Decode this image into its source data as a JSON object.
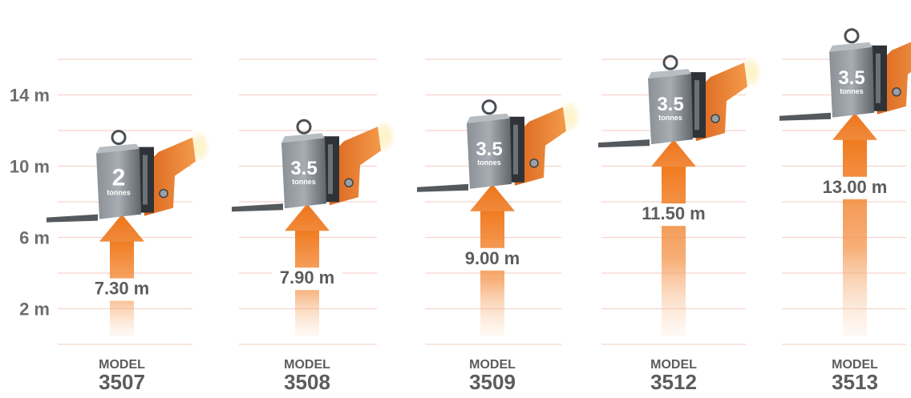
{
  "chart_data": {
    "type": "bar",
    "y_ticks": [
      "2 m",
      "6 m",
      "10 m",
      "14 m"
    ],
    "y_tick_values": [
      2,
      6,
      10,
      14
    ],
    "ylim": [
      0,
      16
    ],
    "grid": true,
    "categories": [
      {
        "model_word": "MODEL",
        "model_number": "3507"
      },
      {
        "model_word": "MODEL",
        "model_number": "3508"
      },
      {
        "model_word": "MODEL",
        "model_number": "3509"
      },
      {
        "model_word": "MODEL",
        "model_number": "3512"
      },
      {
        "model_word": "MODEL",
        "model_number": "3513"
      }
    ],
    "values": [
      7.3,
      7.9,
      9.0,
      11.5,
      13.0
    ],
    "value_labels": [
      "7.30 m",
      "7.90 m",
      "9.00 m",
      "11.50 m",
      "13.00 m"
    ],
    "capacity_numbers": [
      "2",
      "3.5",
      "3.5",
      "3.5",
      "3.5"
    ],
    "capacity_unit": "tonnes",
    "colors": {
      "arrow": "#f07a1e",
      "grid": "#f4c9c0",
      "text": "#5c5c5c",
      "weight": "#6f757b",
      "machine": "#e8701c"
    }
  }
}
